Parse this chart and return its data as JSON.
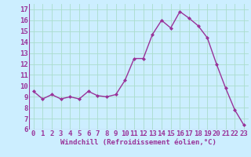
{
  "x": [
    0,
    1,
    2,
    3,
    4,
    5,
    6,
    7,
    8,
    9,
    10,
    11,
    12,
    13,
    14,
    15,
    16,
    17,
    18,
    19,
    20,
    21,
    22,
    23
  ],
  "y": [
    9.5,
    8.8,
    9.2,
    8.8,
    9.0,
    8.8,
    9.5,
    9.1,
    9.0,
    9.2,
    10.5,
    12.5,
    12.5,
    14.7,
    16.0,
    15.3,
    16.8,
    16.2,
    15.5,
    14.4,
    12.0,
    9.8,
    7.8,
    6.4
  ],
  "line_color": "#993399",
  "marker": "D",
  "marker_size": 2.0,
  "line_width": 1.0,
  "background_color": "#cceeff",
  "grid_color": "#aaddcc",
  "xlabel": "Windchill (Refroidissement éolien,°C)",
  "xlabel_fontsize": 6.5,
  "tick_fontsize": 6.5,
  "ylim": [
    6,
    17.5
  ],
  "yticks": [
    6,
    7,
    8,
    9,
    10,
    11,
    12,
    13,
    14,
    15,
    16,
    17
  ],
  "xticks": [
    0,
    1,
    2,
    3,
    4,
    5,
    6,
    7,
    8,
    9,
    10,
    11,
    12,
    13,
    14,
    15,
    16,
    17,
    18,
    19,
    20,
    21,
    22,
    23
  ]
}
